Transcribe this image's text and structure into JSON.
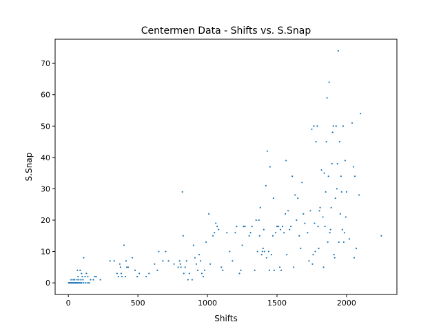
{
  "chart_data": {
    "type": "scatter",
    "title": "Centermen Data - Shifts vs. S.Snap",
    "xlabel": "Shifts",
    "ylabel": "S.Snap",
    "xlim": [
      -95,
      2362
    ],
    "ylim": [
      -3.7,
      77.7
    ],
    "x_ticks": [
      0,
      500,
      1000,
      1500,
      2000
    ],
    "x_tick_labels": [
      "0",
      "500",
      "1000",
      "1500",
      "2000"
    ],
    "y_ticks": [
      0,
      10,
      20,
      30,
      40,
      50,
      60,
      70
    ],
    "y_tick_labels": [
      "0",
      "10",
      "20",
      "30",
      "40",
      "50",
      "60",
      "70"
    ],
    "grid": false,
    "legend": "none",
    "point_color": "#1f77b4",
    "points": [
      [
        2,
        0
      ],
      [
        8,
        0
      ],
      [
        14,
        0
      ],
      [
        18,
        0
      ],
      [
        22,
        0
      ],
      [
        27,
        0
      ],
      [
        32,
        0
      ],
      [
        38,
        0
      ],
      [
        44,
        0
      ],
      [
        50,
        0
      ],
      [
        55,
        0
      ],
      [
        60,
        0
      ],
      [
        66,
        0
      ],
      [
        72,
        0
      ],
      [
        80,
        0
      ],
      [
        88,
        0
      ],
      [
        96,
        0
      ],
      [
        110,
        0
      ],
      [
        125,
        0
      ],
      [
        140,
        0
      ],
      [
        150,
        0
      ],
      [
        20,
        1
      ],
      [
        35,
        1
      ],
      [
        45,
        1
      ],
      [
        62,
        1
      ],
      [
        75,
        1
      ],
      [
        90,
        1
      ],
      [
        105,
        1
      ],
      [
        160,
        1
      ],
      [
        180,
        1
      ],
      [
        70,
        2
      ],
      [
        100,
        2
      ],
      [
        120,
        2
      ],
      [
        140,
        2
      ],
      [
        190,
        2
      ],
      [
        200,
        2
      ],
      [
        95,
        3
      ],
      [
        130,
        3
      ],
      [
        65,
        4
      ],
      [
        85,
        4
      ],
      [
        110,
        8
      ],
      [
        230,
        1
      ],
      [
        300,
        7
      ],
      [
        330,
        7
      ],
      [
        350,
        3
      ],
      [
        360,
        2
      ],
      [
        370,
        6
      ],
      [
        375,
        5
      ],
      [
        380,
        3
      ],
      [
        385,
        2
      ],
      [
        400,
        12
      ],
      [
        410,
        2
      ],
      [
        415,
        7
      ],
      [
        420,
        5
      ],
      [
        430,
        5
      ],
      [
        460,
        8
      ],
      [
        480,
        4
      ],
      [
        495,
        2
      ],
      [
        510,
        3
      ],
      [
        560,
        2
      ],
      [
        580,
        3
      ],
      [
        620,
        6
      ],
      [
        640,
        4
      ],
      [
        650,
        10
      ],
      [
        680,
        7
      ],
      [
        700,
        10
      ],
      [
        720,
        7
      ],
      [
        760,
        6
      ],
      [
        790,
        5
      ],
      [
        800,
        7
      ],
      [
        805,
        6
      ],
      [
        810,
        5
      ],
      [
        820,
        29
      ],
      [
        825,
        15
      ],
      [
        830,
        3
      ],
      [
        840,
        5
      ],
      [
        850,
        7
      ],
      [
        860,
        1
      ],
      [
        870,
        3
      ],
      [
        890,
        1
      ],
      [
        900,
        12
      ],
      [
        910,
        8
      ],
      [
        920,
        6
      ],
      [
        930,
        4
      ],
      [
        940,
        9
      ],
      [
        950,
        7
      ],
      [
        960,
        3
      ],
      [
        970,
        2
      ],
      [
        980,
        4
      ],
      [
        990,
        13
      ],
      [
        1010,
        22
      ],
      [
        1020,
        6
      ],
      [
        1040,
        15
      ],
      [
        1050,
        16
      ],
      [
        1060,
        19
      ],
      [
        1070,
        18
      ],
      [
        1080,
        17
      ],
      [
        1100,
        5
      ],
      [
        1110,
        4
      ],
      [
        1140,
        16
      ],
      [
        1160,
        10
      ],
      [
        1180,
        7
      ],
      [
        1200,
        16
      ],
      [
        1210,
        18
      ],
      [
        1230,
        3
      ],
      [
        1240,
        4
      ],
      [
        1250,
        12
      ],
      [
        1260,
        18
      ],
      [
        1270,
        18
      ],
      [
        1300,
        15
      ],
      [
        1310,
        16
      ],
      [
        1320,
        18
      ],
      [
        1340,
        4
      ],
      [
        1350,
        20
      ],
      [
        1360,
        10
      ],
      [
        1370,
        20
      ],
      [
        1375,
        15
      ],
      [
        1380,
        24
      ],
      [
        1390,
        9
      ],
      [
        1395,
        10
      ],
      [
        1400,
        11
      ],
      [
        1405,
        17
      ],
      [
        1410,
        10
      ],
      [
        1420,
        31
      ],
      [
        1425,
        8
      ],
      [
        1430,
        42
      ],
      [
        1440,
        10
      ],
      [
        1445,
        4
      ],
      [
        1450,
        37
      ],
      [
        1460,
        9
      ],
      [
        1470,
        15
      ],
      [
        1475,
        27
      ],
      [
        1480,
        4
      ],
      [
        1490,
        16
      ],
      [
        1500,
        18
      ],
      [
        1510,
        18
      ],
      [
        1520,
        5
      ],
      [
        1525,
        17
      ],
      [
        1530,
        4
      ],
      [
        1540,
        18
      ],
      [
        1550,
        16
      ],
      [
        1560,
        22
      ],
      [
        1565,
        39
      ],
      [
        1570,
        9
      ],
      [
        1580,
        23
      ],
      [
        1590,
        17
      ],
      [
        1600,
        18
      ],
      [
        1610,
        34
      ],
      [
        1620,
        5
      ],
      [
        1630,
        28
      ],
      [
        1640,
        20
      ],
      [
        1650,
        27
      ],
      [
        1660,
        15
      ],
      [
        1670,
        11
      ],
      [
        1680,
        32
      ],
      [
        1690,
        22
      ],
      [
        1700,
        19
      ],
      [
        1720,
        16
      ],
      [
        1730,
        7
      ],
      [
        1740,
        23
      ],
      [
        1750,
        49
      ],
      [
        1755,
        6
      ],
      [
        1760,
        9
      ],
      [
        1765,
        50
      ],
      [
        1770,
        19
      ],
      [
        1775,
        10
      ],
      [
        1780,
        45
      ],
      [
        1790,
        50
      ],
      [
        1795,
        18
      ],
      [
        1800,
        11
      ],
      [
        1805,
        23
      ],
      [
        1810,
        24
      ],
      [
        1820,
        36
      ],
      [
        1830,
        21
      ],
      [
        1835,
        5
      ],
      [
        1840,
        35
      ],
      [
        1845,
        18
      ],
      [
        1850,
        29
      ],
      [
        1855,
        45
      ],
      [
        1860,
        59
      ],
      [
        1865,
        13
      ],
      [
        1870,
        34
      ],
      [
        1875,
        64
      ],
      [
        1880,
        16
      ],
      [
        1885,
        17
      ],
      [
        1890,
        24
      ],
      [
        1895,
        38
      ],
      [
        1900,
        48
      ],
      [
        1905,
        50
      ],
      [
        1910,
        9
      ],
      [
        1915,
        8
      ],
      [
        1920,
        27
      ],
      [
        1925,
        50
      ],
      [
        1930,
        30
      ],
      [
        1935,
        38
      ],
      [
        1940,
        74
      ],
      [
        1945,
        13
      ],
      [
        1950,
        45
      ],
      [
        1955,
        22
      ],
      [
        1960,
        34
      ],
      [
        1965,
        29
      ],
      [
        1970,
        17
      ],
      [
        1975,
        50
      ],
      [
        1980,
        13
      ],
      [
        1985,
        16
      ],
      [
        1990,
        39
      ],
      [
        1995,
        21
      ],
      [
        2000,
        29
      ],
      [
        2020,
        14
      ],
      [
        2040,
        51
      ],
      [
        2050,
        37
      ],
      [
        2055,
        8
      ],
      [
        2060,
        34
      ],
      [
        2070,
        11
      ],
      [
        2090,
        28
      ],
      [
        2100,
        54
      ],
      [
        2250,
        15
      ]
    ]
  }
}
